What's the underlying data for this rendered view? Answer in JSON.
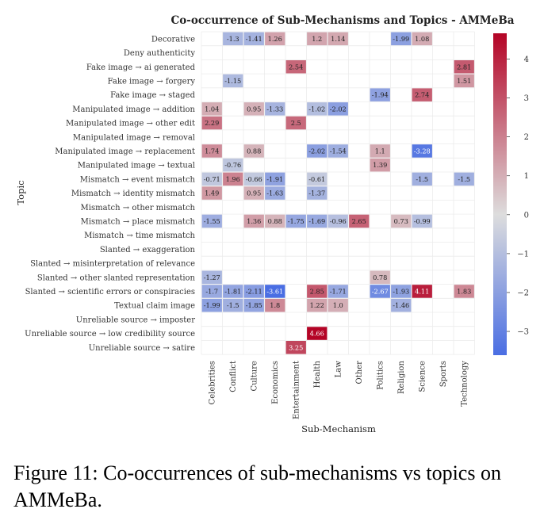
{
  "chart_data": {
    "type": "heatmap",
    "title": "Co-occurrence of Sub-Mechanisms and Topics - AMMeBa",
    "xlabel": "Sub-Mechanism",
    "ylabel": "Topic",
    "columns": [
      "Celebrities",
      "Conflict",
      "Culture",
      "Economics",
      "Entertainment",
      "Health",
      "Law",
      "Other",
      "Politics",
      "Religion",
      "Science",
      "Sports",
      "Technology"
    ],
    "rows": [
      "Decorative",
      "Deny authenticity",
      "Fake image → ai generated",
      "Fake image → forgery",
      "Fake image → staged",
      "Manipulated image → addition",
      "Manipulated image → other edit",
      "Manipulated image → removal",
      "Manipulated image → replacement",
      "Manipulated image → textual",
      "Mismatch → event mismatch",
      "Mismatch → identity mismatch",
      "Mismatch → other mismatch",
      "Mismatch → place mismatch",
      "Mismatch → time mismatch",
      "Slanted → exaggeration",
      "Slanted → misinterpretation of relevance",
      "Slanted → other slanted representation",
      "Slanted → scientific errors or conspiracies",
      "Textual claim image",
      "Unreliable source → imposter",
      "Unreliable source → low credibility source",
      "Unreliable source → satire"
    ],
    "values": [
      [
        null,
        -1.3,
        -1.41,
        1.26,
        null,
        1.2,
        1.14,
        null,
        null,
        -1.99,
        1.08,
        null,
        null
      ],
      [
        null,
        null,
        null,
        null,
        null,
        null,
        null,
        null,
        null,
        null,
        null,
        null,
        null
      ],
      [
        null,
        null,
        null,
        null,
        2.54,
        null,
        null,
        null,
        null,
        null,
        null,
        null,
        2.81
      ],
      [
        null,
        -1.15,
        null,
        null,
        null,
        null,
        null,
        null,
        null,
        null,
        null,
        null,
        1.51
      ],
      [
        null,
        null,
        null,
        null,
        null,
        null,
        null,
        null,
        -1.94,
        null,
        2.74,
        null,
        null
      ],
      [
        1.04,
        null,
        0.95,
        -1.33,
        null,
        -1.02,
        -2.02,
        null,
        null,
        null,
        null,
        null,
        null
      ],
      [
        2.29,
        null,
        null,
        null,
        2.5,
        null,
        null,
        null,
        null,
        null,
        null,
        null,
        null
      ],
      [
        null,
        null,
        null,
        null,
        null,
        null,
        null,
        null,
        null,
        null,
        null,
        null,
        null
      ],
      [
        1.74,
        null,
        0.88,
        null,
        null,
        -2.02,
        -1.54,
        null,
        1.1,
        null,
        -3.28,
        null,
        null
      ],
      [
        null,
        -0.76,
        null,
        null,
        null,
        null,
        null,
        null,
        1.39,
        null,
        null,
        null,
        null
      ],
      [
        -0.71,
        1.96,
        -0.66,
        -1.91,
        null,
        -0.61,
        null,
        null,
        null,
        null,
        -1.5,
        null,
        -1.5
      ],
      [
        1.49,
        null,
        0.95,
        -1.63,
        null,
        -1.37,
        null,
        null,
        null,
        null,
        null,
        null,
        null
      ],
      [
        null,
        null,
        null,
        null,
        null,
        null,
        null,
        null,
        null,
        null,
        null,
        null,
        null
      ],
      [
        -1.55,
        null,
        1.36,
        0.88,
        -1.75,
        -1.69,
        -0.96,
        2.65,
        null,
        0.73,
        -0.99,
        null,
        null
      ],
      [
        null,
        null,
        null,
        null,
        null,
        null,
        null,
        null,
        null,
        null,
        null,
        null,
        null
      ],
      [
        null,
        null,
        null,
        null,
        null,
        null,
        null,
        null,
        null,
        null,
        null,
        null,
        null
      ],
      [
        null,
        null,
        null,
        null,
        null,
        null,
        null,
        null,
        null,
        null,
        null,
        null,
        null
      ],
      [
        -1.27,
        null,
        null,
        null,
        null,
        null,
        null,
        null,
        0.78,
        null,
        null,
        null,
        null
      ],
      [
        -1.7,
        -1.81,
        -2.11,
        -3.61,
        null,
        2.85,
        -1.71,
        null,
        -2.67,
        -1.93,
        4.11,
        null,
        1.83
      ],
      [
        -1.99,
        -1.5,
        -1.85,
        1.8,
        null,
        1.22,
        1.0,
        null,
        null,
        -1.46,
        null,
        null,
        null
      ],
      [
        null,
        null,
        null,
        null,
        null,
        null,
        null,
        null,
        null,
        null,
        null,
        null,
        null
      ],
      [
        null,
        null,
        null,
        null,
        null,
        4.66,
        null,
        null,
        null,
        null,
        null,
        null,
        null
      ],
      [
        null,
        null,
        null,
        null,
        3.25,
        null,
        null,
        null,
        null,
        null,
        null,
        null,
        null
      ]
    ],
    "value_labels": [
      [
        null,
        "-1.3",
        "-1.41",
        "1.26",
        null,
        "1.2",
        "1.14",
        null,
        null,
        "-1.99",
        "1.08",
        null,
        null
      ],
      [
        null,
        null,
        null,
        null,
        null,
        null,
        null,
        null,
        null,
        null,
        null,
        null,
        null
      ],
      [
        null,
        null,
        null,
        null,
        "2.54",
        null,
        null,
        null,
        null,
        null,
        null,
        null,
        "2.81"
      ],
      [
        null,
        "-1.15",
        null,
        null,
        null,
        null,
        null,
        null,
        null,
        null,
        null,
        null,
        "1.51"
      ],
      [
        null,
        null,
        null,
        null,
        null,
        null,
        null,
        null,
        "-1.94",
        null,
        "2.74",
        null,
        null
      ],
      [
        "1.04",
        null,
        "0.95",
        "-1.33",
        null,
        "-1.02",
        "-2.02",
        null,
        null,
        null,
        null,
        null,
        null
      ],
      [
        "2.29",
        null,
        null,
        null,
        "2.5",
        null,
        null,
        null,
        null,
        null,
        null,
        null,
        null
      ],
      [
        null,
        null,
        null,
        null,
        null,
        null,
        null,
        null,
        null,
        null,
        null,
        null,
        null
      ],
      [
        "1.74",
        null,
        "0.88",
        null,
        null,
        "-2.02",
        "-1.54",
        null,
        "1.1",
        null,
        "-3.28",
        null,
        null
      ],
      [
        null,
        "-0.76",
        null,
        null,
        null,
        null,
        null,
        null,
        "1.39",
        null,
        null,
        null,
        null
      ],
      [
        "-0.71",
        "1.96",
        "-0.66",
        "-1.91",
        null,
        "-0.61",
        null,
        null,
        null,
        null,
        "-1.5",
        null,
        "-1.5"
      ],
      [
        "1.49",
        null,
        "0.95",
        "-1.63",
        null,
        "-1.37",
        null,
        null,
        null,
        null,
        null,
        null,
        null
      ],
      [
        null,
        null,
        null,
        null,
        null,
        null,
        null,
        null,
        null,
        null,
        null,
        null,
        null
      ],
      [
        "-1.55",
        null,
        "1.36",
        "0.88",
        "-1.75",
        "-1.69",
        "-0.96",
        "2.65",
        null,
        "0.73",
        "-0.99",
        null,
        null
      ],
      [
        null,
        null,
        null,
        null,
        null,
        null,
        null,
        null,
        null,
        null,
        null,
        null,
        null
      ],
      [
        null,
        null,
        null,
        null,
        null,
        null,
        null,
        null,
        null,
        null,
        null,
        null,
        null
      ],
      [
        null,
        null,
        null,
        null,
        null,
        null,
        null,
        null,
        null,
        null,
        null,
        null,
        null
      ],
      [
        "-1.27",
        null,
        null,
        null,
        null,
        null,
        null,
        null,
        "0.78",
        null,
        null,
        null,
        null
      ],
      [
        "-1.7",
        "-1.81",
        "-2.11",
        "-3.61",
        null,
        "2.85",
        "-1.71",
        null,
        "-2.67",
        "-1.93",
        "4.11",
        null,
        "1.83"
      ],
      [
        "-1.99",
        "-1.5",
        "-1.85",
        "1.8",
        null,
        "1.22",
        "1.0",
        null,
        null,
        "-1.46",
        null,
        null,
        null
      ],
      [
        null,
        null,
        null,
        null,
        null,
        null,
        null,
        null,
        null,
        null,
        null,
        null,
        null
      ],
      [
        null,
        null,
        null,
        null,
        null,
        "4.66",
        null,
        null,
        null,
        null,
        null,
        null,
        null
      ],
      [
        null,
        null,
        null,
        null,
        "3.25",
        null,
        null,
        null,
        null,
        null,
        null,
        null,
        null
      ]
    ],
    "colorbar": {
      "range": [
        -3.61,
        4.66
      ],
      "ticks": [
        -3,
        -2,
        -1,
        0,
        1,
        2,
        3,
        4
      ],
      "tick_labels": [
        "−3",
        "−2",
        "−1",
        "0",
        "1",
        "2",
        "3",
        "4"
      ],
      "colors": {
        "negative": "#4a6ee3",
        "mid": "#dddddd",
        "positive": "#b40426"
      }
    },
    "grid": true
  },
  "caption": "Figure 11: Co-occurrences of sub-mechanisms vs topics on AMMeBa."
}
